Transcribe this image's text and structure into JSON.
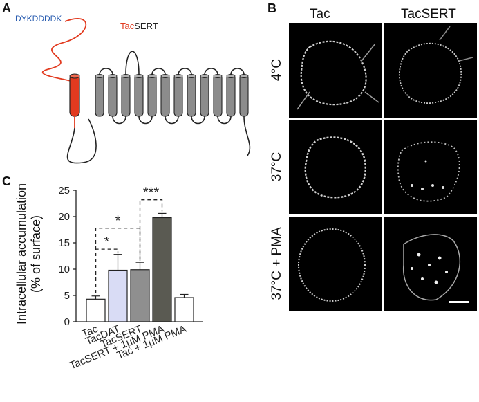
{
  "panel_a": {
    "letter": "A",
    "flag_tag": "DYKDDDDK",
    "construct_prefix": "Tac",
    "construct_suffix": "SERT",
    "colors": {
      "tag": "#2a5db0",
      "tac": "#e23a1f",
      "helix_grey": "#8c8c8c",
      "line": "#222222"
    }
  },
  "panel_b": {
    "letter": "B",
    "columns": [
      "Tac",
      "TacSERT"
    ],
    "rows": [
      "4°C",
      "37°C",
      "37°C + PMA"
    ]
  },
  "panel_c": {
    "letter": "C",
    "ylabel_line1": "Intracellular accumulation",
    "ylabel_line2": "(% of surface)",
    "significance": [
      "*",
      "*",
      "***"
    ]
  },
  "chart_data": {
    "type": "bar",
    "categories": [
      "Tac",
      "TacDAT",
      "TacSERT",
      "TacSERT + 1μM PMA",
      "Tac + 1μM PMA"
    ],
    "values": [
      4.3,
      9.8,
      9.9,
      19.8,
      4.6
    ],
    "errors": [
      0.6,
      3.0,
      1.4,
      0.8,
      0.6
    ],
    "bar_colors": [
      "#ffffff",
      "#d9dcf5",
      "#8f8f8f",
      "#5a5a52",
      "#ffffff"
    ],
    "yticks": [
      0,
      5,
      10,
      15,
      20,
      25
    ],
    "ylim": [
      0,
      25
    ],
    "ylabel": "Intracellular accumulation (% of surface)",
    "comparisons": [
      {
        "from": "Tac",
        "to": "TacDAT",
        "label": "*"
      },
      {
        "from": "Tac",
        "to": "TacSERT",
        "label": "*"
      },
      {
        "from": "TacSERT",
        "to": "TacSERT + 1μM PMA",
        "label": "***"
      }
    ]
  }
}
